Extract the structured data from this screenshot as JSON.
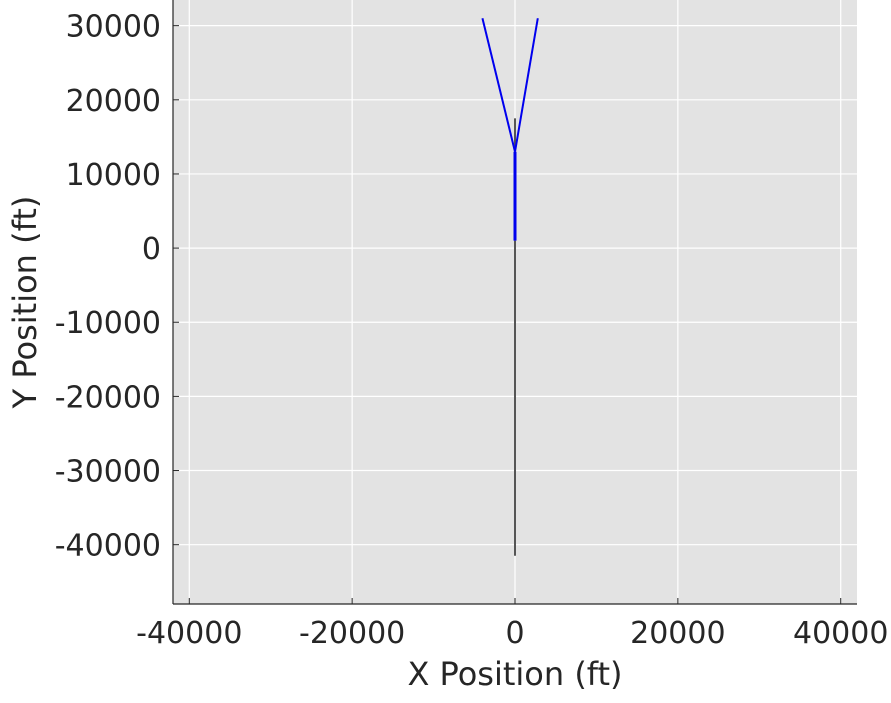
{
  "chart_data": {
    "type": "line",
    "title": "",
    "xlabel": "X Position (ft)",
    "ylabel": "Y Position (ft)",
    "xlim": [
      -42000,
      42000
    ],
    "ylim": [
      -48000,
      34000
    ],
    "grid": true,
    "background_color": "#e3e3e3",
    "grid_color": "#ffffff",
    "x_ticks": [
      -40000,
      -20000,
      0,
      20000,
      40000
    ],
    "x_tick_labels": [
      "-40000",
      "-20000",
      "0",
      "20000",
      "40000"
    ],
    "y_ticks": [
      30000,
      20000,
      10000,
      0,
      -10000,
      -20000,
      -30000,
      -40000
    ],
    "y_tick_labels": [
      "30000",
      "20000",
      "10000",
      "0",
      "-10000",
      "-20000",
      "-30000",
      "-40000"
    ],
    "series": [
      {
        "color": "#555555",
        "width": 2,
        "x": [
          0,
          0
        ],
        "y": [
          -41500,
          1000
        ]
      },
      {
        "color": "#555555",
        "width": 2,
        "x": [
          0,
          0
        ],
        "y": [
          13000,
          17500
        ]
      },
      {
        "color": "#0000ee",
        "width": 3,
        "x": [
          0,
          0
        ],
        "y": [
          1000,
          13000
        ]
      },
      {
        "color": "#0000ee",
        "width": 2,
        "x": [
          0,
          -4000
        ],
        "y": [
          13000,
          31000
        ]
      },
      {
        "color": "#0000ee",
        "width": 2,
        "x": [
          0,
          2800
        ],
        "y": [
          13000,
          31000
        ]
      }
    ]
  }
}
